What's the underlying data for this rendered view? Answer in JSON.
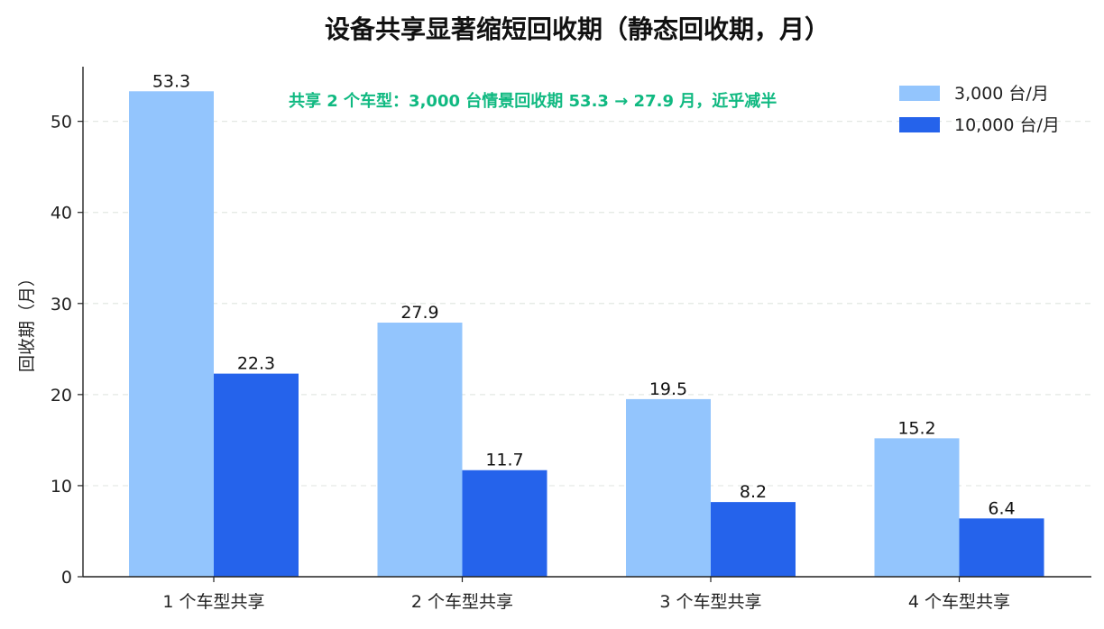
{
  "chart_data": {
    "type": "bar",
    "title": "设备共享显著缩短回收期（静态回收期，月）",
    "xlabel": "",
    "ylabel": "回收期（月）",
    "categories": [
      "1 个车型共享",
      "2 个车型共享",
      "3 个车型共享",
      "4 个车型共享"
    ],
    "series": [
      {
        "name": "3,000 台/月",
        "values": [
          53.3,
          27.9,
          19.5,
          15.2
        ],
        "color": "#93c5fd"
      },
      {
        "name": "10,000 台/月",
        "values": [
          22.3,
          11.7,
          8.2,
          6.4
        ],
        "color": "#2563eb"
      }
    ],
    "value_labels": [
      [
        "53.3",
        "27.9",
        "19.5",
        "15.2"
      ],
      [
        "22.3",
        "11.7",
        "8.2",
        "6.4"
      ]
    ],
    "ylim": [
      0,
      56
    ],
    "yticks": [
      0,
      10,
      20,
      30,
      40,
      50
    ],
    "grid": "horizontal-dashed",
    "legend_position": "top-right",
    "annotation": {
      "text": "共享 2 个车型：3,000 台情景回收期 53.3 → 27.9 月，近乎减半",
      "color": "#10b981"
    }
  }
}
